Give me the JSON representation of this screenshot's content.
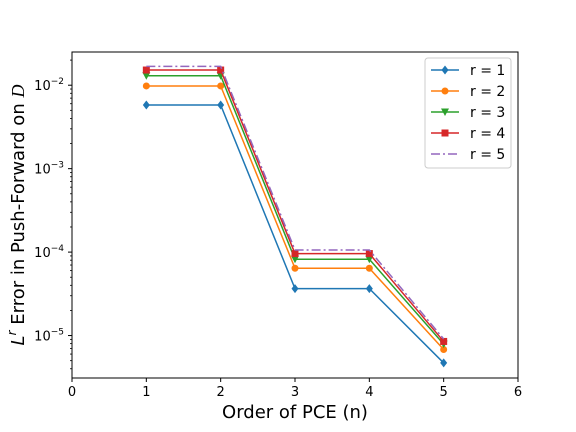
{
  "chart_data": {
    "type": "line",
    "xlabel": "Order of PCE (n)",
    "ylabel_prefix": "L",
    "ylabel_sup": "r",
    "ylabel_rest": " Error in Push-Forward on ",
    "ylabel_domain": "D",
    "x_scale": "linear",
    "y_scale": "log",
    "xlim": [
      0,
      6
    ],
    "ylim": [
      3.1e-06,
      0.025
    ],
    "x_ticks": [
      0,
      1,
      2,
      3,
      4,
      5,
      6
    ],
    "x_tick_labels": [
      "0",
      "1",
      "2",
      "3",
      "4",
      "5",
      "6"
    ],
    "y_ticks": [
      1e-05,
      0.0001,
      0.001,
      0.01
    ],
    "y_tick_bases": [
      "10",
      "10",
      "10",
      "10"
    ],
    "y_tick_exps": [
      "−5",
      "−4",
      "−3",
      "−2"
    ],
    "grid": false,
    "legend_position": "top-right",
    "x": [
      1,
      2,
      3,
      4,
      5
    ],
    "series": [
      {
        "name": "r = 1",
        "color": "#1f77b4",
        "marker": "diamond",
        "dash": "solid",
        "values": [
          0.0058,
          0.0058,
          3.65e-05,
          3.65e-05,
          4.7e-06
        ]
      },
      {
        "name": "r = 2",
        "color": "#ff7f0e",
        "marker": "circle",
        "dash": "solid",
        "values": [
          0.0098,
          0.0098,
          6.4e-05,
          6.4e-05,
          6.8e-06
        ]
      },
      {
        "name": "r = 3",
        "color": "#2ca02c",
        "marker": "triangle-down",
        "dash": "solid",
        "values": [
          0.013,
          0.013,
          8.2e-05,
          8.2e-05,
          7.9e-06
        ]
      },
      {
        "name": "r = 4",
        "color": "#d62728",
        "marker": "square",
        "dash": "solid",
        "values": [
          0.0152,
          0.0152,
          9.6e-05,
          9.6e-05,
          8.5e-06
        ]
      },
      {
        "name": "r = 5",
        "color": "#9467bd",
        "marker": "none",
        "dash": "dashdot",
        "values": [
          0.0168,
          0.0168,
          0.000106,
          0.000106,
          9.1e-06
        ]
      }
    ]
  }
}
